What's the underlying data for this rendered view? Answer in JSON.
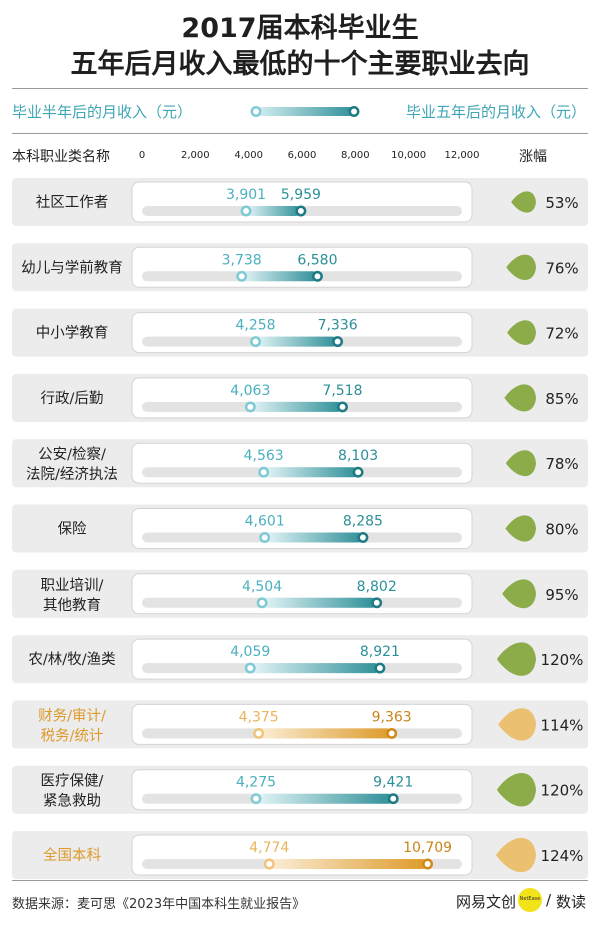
{
  "title": [
    "2017届本科毕业生",
    "五年后月收入最低的十个主要职业去向"
  ],
  "legend": {
    "half_year": "毕业半年后的月收入（元）",
    "five_year": "毕业五年后的月收入（元）"
  },
  "header": {
    "category": "本科职业类名称",
    "growth": "涨幅"
  },
  "source": "数据来源：麦可思《2023年中国本科生就业报告》",
  "logo": {
    "brand": "网易文创",
    "badge": "NetEase",
    "slash": "/",
    "product": "数读"
  },
  "colors": {
    "teal": "#2e8f98",
    "teal_light": "#8fd3dd",
    "orange": "#dd9a2a",
    "orange_light": "#f4d9a6",
    "green": "#8cac4a",
    "tan": "#ecc071",
    "row_bg": "#ececec",
    "track": "#e3e3e3"
  },
  "chart_data": {
    "type": "dumbbell",
    "title": "2017届本科毕业生五年后月收入最低的十个主要职业去向",
    "xlim": [
      0,
      12000
    ],
    "x_ticks": [
      "0",
      "2,000",
      "4,000",
      "6,000",
      "8,000",
      "10,000",
      "12,000"
    ],
    "x_tick_values": [
      0,
      2000,
      4000,
      6000,
      8000,
      10000,
      12000
    ],
    "series_names": [
      "毕业半年后的月收入（元）",
      "毕业五年后的月收入（元）"
    ],
    "rows": [
      {
        "label": [
          "社区工作者"
        ],
        "half": 3901,
        "five": 5959,
        "half_label": "3,901",
        "five_label": "5,959",
        "growth": "53%",
        "highlight": false
      },
      {
        "label": [
          "幼儿与学前教育"
        ],
        "half": 3738,
        "five": 6580,
        "half_label": "3,738",
        "five_label": "6,580",
        "growth": "76%",
        "highlight": false
      },
      {
        "label": [
          "中小学教育"
        ],
        "half": 4258,
        "five": 7336,
        "half_label": "4,258",
        "five_label": "7,336",
        "growth": "72%",
        "highlight": false
      },
      {
        "label": [
          "行政/后勤"
        ],
        "half": 4063,
        "five": 7518,
        "half_label": "4,063",
        "five_label": "7,518",
        "growth": "85%",
        "highlight": false
      },
      {
        "label": [
          "公安/检察/",
          "法院/经济执法"
        ],
        "half": 4563,
        "five": 8103,
        "half_label": "4,563",
        "five_label": "8,103",
        "growth": "78%",
        "highlight": false
      },
      {
        "label": [
          "保险"
        ],
        "half": 4601,
        "five": 8285,
        "half_label": "4,601",
        "five_label": "8,285",
        "growth": "80%",
        "highlight": false
      },
      {
        "label": [
          "职业培训/",
          "其他教育"
        ],
        "half": 4504,
        "five": 8802,
        "half_label": "4,504",
        "five_label": "8,802",
        "growth": "95%",
        "highlight": false
      },
      {
        "label": [
          "农/林/牧/渔类"
        ],
        "half": 4059,
        "five": 8921,
        "half_label": "4,059",
        "five_label": "8,921",
        "growth": "120%",
        "highlight": false
      },
      {
        "label": [
          "财务/审计/",
          "税务/统计"
        ],
        "half": 4375,
        "five": 9363,
        "half_label": "4,375",
        "five_label": "9,363",
        "growth": "114%",
        "highlight": true
      },
      {
        "label": [
          "医疗保健/",
          "紧急救助"
        ],
        "half": 4275,
        "five": 9421,
        "half_label": "4,275",
        "five_label": "9,421",
        "growth": "120%",
        "highlight": false
      },
      {
        "label": [
          "全国本科"
        ],
        "half": 4774,
        "five": 10709,
        "half_label": "4,774",
        "five_label": "10,709",
        "growth": "124%",
        "highlight": true
      }
    ]
  }
}
